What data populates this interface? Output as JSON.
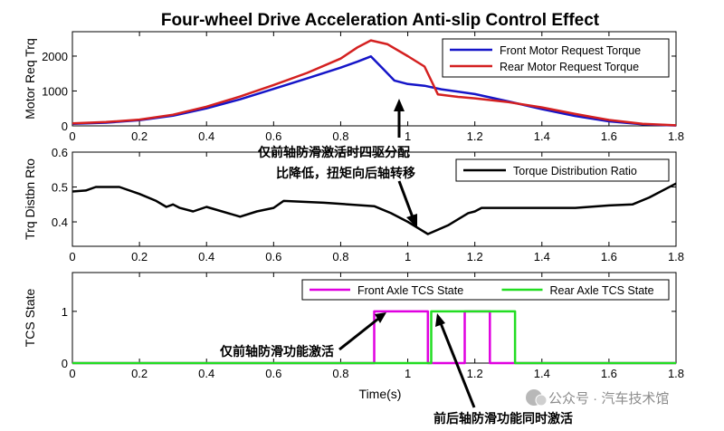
{
  "title": "Four-wheel Drive Acceleration Anti-slip Control Effect",
  "xlabel": "Time(s)",
  "x_ticks": [
    0,
    0.2,
    0.4,
    0.6,
    0.8,
    1,
    1.2,
    1.4,
    1.6,
    1.8
  ],
  "x_tick_labels": [
    "0",
    "0.2",
    "0.4",
    "0.6",
    "0.8",
    "1",
    "1.2",
    "1.4",
    "1.6",
    "1.8"
  ],
  "annotations": {
    "torque_shift": [
      "仅前轴防滑激活时四驱分配",
      "比降低，扭矩向后轴转移"
    ],
    "front_only": "仅前轴防滑功能激活",
    "both_axles": "前后轴防滑功能同时激活"
  },
  "watermark": "公众号 · 汽车技术馆",
  "colors": {
    "blue": "#1515c8",
    "red": "#d42020",
    "magenta": "#e000e0",
    "green": "#22dd22",
    "black": "#000000"
  },
  "chart_data": [
    {
      "type": "line",
      "ylabel": "Motor Req Trq",
      "xlim": [
        0,
        1.8
      ],
      "ylim": [
        0,
        2700
      ],
      "y_ticks": [
        0,
        1000,
        2000
      ],
      "y_tick_labels": [
        "0",
        "1000",
        "2000"
      ],
      "legend": "top-right",
      "grid": false,
      "series": [
        {
          "name": "Front Motor Request Torque",
          "color": "#1515c8",
          "points": [
            [
              0,
              60
            ],
            [
              0.1,
              90
            ],
            [
              0.2,
              160
            ],
            [
              0.3,
              290
            ],
            [
              0.4,
              500
            ],
            [
              0.5,
              760
            ],
            [
              0.6,
              1060
            ],
            [
              0.7,
              1360
            ],
            [
              0.8,
              1670
            ],
            [
              0.85,
              1840
            ],
            [
              0.89,
              1990
            ],
            [
              0.93,
              1600
            ],
            [
              0.96,
              1300
            ],
            [
              1.0,
              1200
            ],
            [
              1.05,
              1150
            ],
            [
              1.1,
              1050
            ],
            [
              1.2,
              910
            ],
            [
              1.3,
              700
            ],
            [
              1.4,
              480
            ],
            [
              1.5,
              280
            ],
            [
              1.6,
              130
            ],
            [
              1.7,
              45
            ],
            [
              1.8,
              10
            ]
          ]
        },
        {
          "name": "Rear Motor Request Torque",
          "color": "#d42020",
          "points": [
            [
              0,
              70
            ],
            [
              0.1,
              110
            ],
            [
              0.2,
              180
            ],
            [
              0.3,
              320
            ],
            [
              0.4,
              550
            ],
            [
              0.5,
              840
            ],
            [
              0.6,
              1170
            ],
            [
              0.7,
              1520
            ],
            [
              0.8,
              1930
            ],
            [
              0.85,
              2250
            ],
            [
              0.89,
              2450
            ],
            [
              0.94,
              2340
            ],
            [
              1.0,
              2000
            ],
            [
              1.05,
              1700
            ],
            [
              1.09,
              900
            ],
            [
              1.15,
              830
            ],
            [
              1.2,
              790
            ],
            [
              1.3,
              680
            ],
            [
              1.4,
              530
            ],
            [
              1.5,
              340
            ],
            [
              1.6,
              170
            ],
            [
              1.7,
              60
            ],
            [
              1.8,
              15
            ]
          ]
        }
      ]
    },
    {
      "type": "line",
      "ylabel": "Trq Distbn Rto",
      "xlim": [
        0,
        1.8
      ],
      "ylim": [
        0.33,
        0.6
      ],
      "y_ticks": [
        0.4,
        0.5,
        0.6
      ],
      "y_tick_labels": [
        "0.4",
        "0.5",
        "0.6"
      ],
      "legend": "top-right",
      "grid": false,
      "series": [
        {
          "name": "Torque Distribution Ratio",
          "color": "#000000",
          "points": [
            [
              0,
              0.487
            ],
            [
              0.04,
              0.49
            ],
            [
              0.07,
              0.5
            ],
            [
              0.14,
              0.5
            ],
            [
              0.2,
              0.48
            ],
            [
              0.25,
              0.46
            ],
            [
              0.28,
              0.443
            ],
            [
              0.3,
              0.45
            ],
            [
              0.32,
              0.44
            ],
            [
              0.36,
              0.43
            ],
            [
              0.4,
              0.443
            ],
            [
              0.5,
              0.415
            ],
            [
              0.55,
              0.43
            ],
            [
              0.6,
              0.44
            ],
            [
              0.63,
              0.46
            ],
            [
              0.75,
              0.455
            ],
            [
              0.9,
              0.445
            ],
            [
              0.95,
              0.425
            ],
            [
              1.0,
              0.4
            ],
            [
              1.06,
              0.365
            ],
            [
              1.12,
              0.39
            ],
            [
              1.18,
              0.425
            ],
            [
              1.2,
              0.43
            ],
            [
              1.22,
              0.44
            ],
            [
              1.35,
              0.44
            ],
            [
              1.5,
              0.44
            ],
            [
              1.6,
              0.447
            ],
            [
              1.67,
              0.45
            ],
            [
              1.72,
              0.47
            ],
            [
              1.8,
              0.51
            ]
          ]
        }
      ]
    },
    {
      "type": "line",
      "ylabel": "TCS State",
      "xlim": [
        0,
        1.8
      ],
      "ylim": [
        0,
        1.75
      ],
      "y_ticks": [
        0,
        1
      ],
      "y_tick_labels": [
        "0",
        "1"
      ],
      "legend": "top-right",
      "grid": false,
      "series": [
        {
          "name": "Front Axle TCS State",
          "color": "#e000e0",
          "points": [
            [
              0,
              0
            ],
            [
              0.9,
              0
            ],
            [
              0.9,
              1
            ],
            [
              1.06,
              1
            ],
            [
              1.06,
              0
            ],
            [
              1.17,
              0
            ],
            [
              1.17,
              1
            ],
            [
              1.245,
              1
            ],
            [
              1.245,
              0
            ],
            [
              1.8,
              0
            ]
          ]
        },
        {
          "name": "Rear Axle TCS State",
          "color": "#22dd22",
          "points": [
            [
              0,
              0
            ],
            [
              1.07,
              0
            ],
            [
              1.07,
              1
            ],
            [
              1.32,
              1
            ],
            [
              1.32,
              0
            ],
            [
              1.8,
              0
            ]
          ]
        }
      ]
    }
  ]
}
